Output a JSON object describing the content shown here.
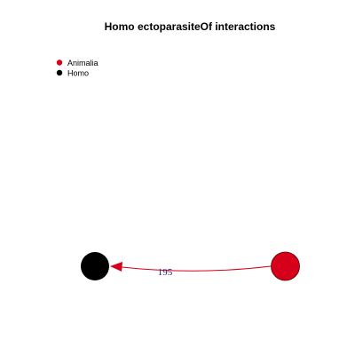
{
  "title": "Homo ectoparasiteOf interactions",
  "legend": {
    "items": [
      {
        "label": "Animalia",
        "color": "#d7001a"
      },
      {
        "label": "Homo",
        "color": "#000000"
      }
    ]
  },
  "nodes": [
    {
      "id": "homo",
      "label": "Homo",
      "color": "#000000"
    },
    {
      "id": "animalia",
      "label": "Animalia",
      "color": "#d7001a"
    }
  ],
  "edges": [
    {
      "from": "animalia",
      "to": "homo",
      "label": "195",
      "color": "#d7001a",
      "label_color": "#1a1a6e"
    }
  ]
}
